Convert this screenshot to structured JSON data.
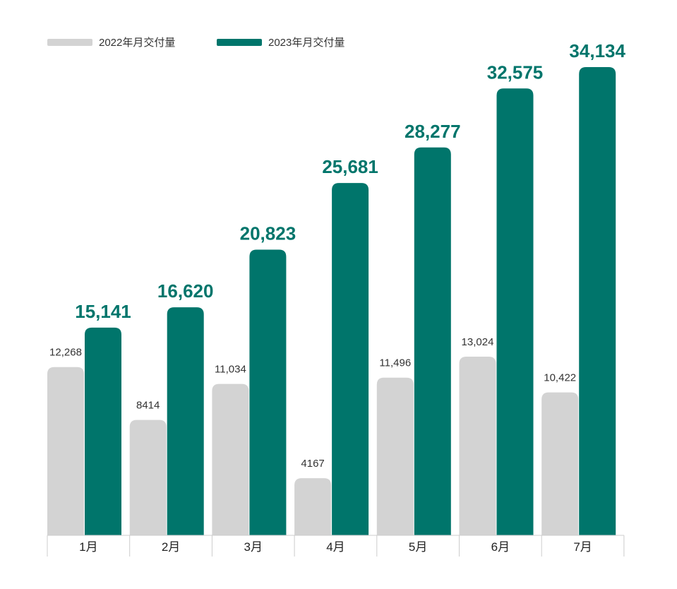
{
  "colors": {
    "series_2022": "#d3d3d3",
    "series_2023": "#00756b",
    "label_2023": "#00756b",
    "axis": "#cccccc"
  },
  "chart_data": {
    "type": "bar",
    "categories": [
      "1月",
      "2月",
      "3月",
      "4月",
      "5月",
      "6月",
      "7月"
    ],
    "series": [
      {
        "name": "2022年月交付量",
        "values": [
          12268,
          8414,
          11034,
          4167,
          11496,
          13024,
          10422
        ],
        "labels": [
          "12,268",
          "8414",
          "11,034",
          "4167",
          "11,496",
          "13,024",
          "10,422"
        ]
      },
      {
        "name": "2023年月交付量",
        "values": [
          15141,
          16620,
          20823,
          25681,
          28277,
          32575,
          34134
        ],
        "labels": [
          "15,141",
          "16,620",
          "20,823",
          "25,681",
          "28,277",
          "32,575",
          "34,134"
        ]
      }
    ],
    "legend_position": "top-left",
    "grid": false,
    "ylim": [
      0,
      34134
    ]
  }
}
